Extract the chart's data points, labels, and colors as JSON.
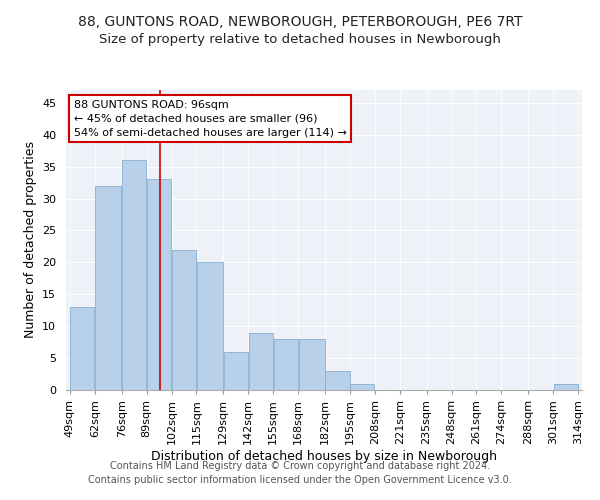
{
  "title": "88, GUNTONS ROAD, NEWBOROUGH, PETERBOROUGH, PE6 7RT",
  "subtitle": "Size of property relative to detached houses in Newborough",
  "xlabel": "Distribution of detached houses by size in Newborough",
  "ylabel": "Number of detached properties",
  "footer_line1": "Contains HM Land Registry data © Crown copyright and database right 2024.",
  "footer_line2": "Contains public sector information licensed under the Open Government Licence v3.0.",
  "annotation_line1": "88 GUNTONS ROAD: 96sqm",
  "annotation_line2": "← 45% of detached houses are smaller (96)",
  "annotation_line3": "54% of semi-detached houses are larger (114) →",
  "bin_edges": [
    49,
    62,
    76,
    89,
    102,
    115,
    129,
    142,
    155,
    168,
    182,
    195,
    208,
    221,
    235,
    248,
    261,
    274,
    288,
    301,
    314
  ],
  "bar_values": [
    13,
    32,
    36,
    33,
    22,
    20,
    6,
    9,
    8,
    8,
    3,
    1,
    0,
    0,
    0,
    0,
    0,
    0,
    0,
    1
  ],
  "bar_color": "#b8d0ea",
  "bar_edge_color": "#8ab0d0",
  "vline_color": "#cc0000",
  "vline_x": 96,
  "annotation_box_edge_color": "#cc0000",
  "ylim": [
    0,
    47
  ],
  "yticks": [
    0,
    5,
    10,
    15,
    20,
    25,
    30,
    35,
    40,
    45
  ],
  "background_color": "#ffffff",
  "plot_bg_color": "#eef2f8",
  "grid_color": "#ffffff",
  "title_fontsize": 10,
  "subtitle_fontsize": 9.5,
  "xlabel_fontsize": 9,
  "ylabel_fontsize": 9,
  "tick_fontsize": 8,
  "annotation_fontsize": 8,
  "footer_fontsize": 7
}
